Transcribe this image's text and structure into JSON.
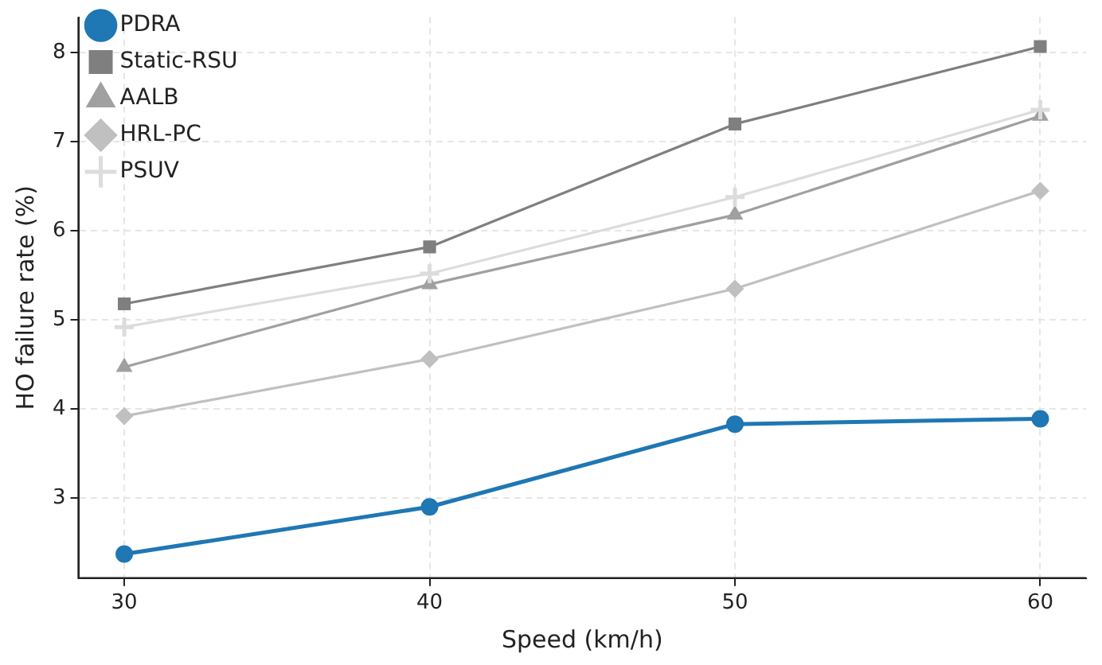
{
  "chart_data": {
    "type": "line",
    "xlabel": "Speed (km/h)",
    "ylabel": "HO failure rate (%)",
    "x": [
      30,
      40,
      50,
      60
    ],
    "series": [
      {
        "name": "PDRA",
        "color": "#1f77b4",
        "marker": "circle",
        "values": [
          2.37,
          2.9,
          3.83,
          3.89
        ]
      },
      {
        "name": "Static-RSU",
        "color": "#7f7f7f",
        "marker": "square",
        "values": [
          5.18,
          5.82,
          7.2,
          8.07
        ]
      },
      {
        "name": "AALB",
        "color": "#a0a0a0",
        "marker": "triangle",
        "values": [
          4.47,
          5.4,
          6.18,
          7.29
        ]
      },
      {
        "name": "HRL-PC",
        "color": "#c0c0c0",
        "marker": "diamond",
        "values": [
          3.92,
          4.56,
          5.35,
          6.45
        ]
      },
      {
        "name": "PSUV",
        "color": "#dcdcdc",
        "marker": "cross",
        "values": [
          4.92,
          5.52,
          6.38,
          7.36
        ]
      }
    ],
    "xlim": [
      28.5,
      61.5
    ],
    "xticks": [
      30,
      40,
      50,
      60
    ],
    "ylim": [
      2.1,
      8.4
    ],
    "yticks": [
      3,
      4,
      5,
      6,
      7,
      8
    ],
    "grid": true,
    "legend": "top left",
    "line_style": "solid"
  }
}
